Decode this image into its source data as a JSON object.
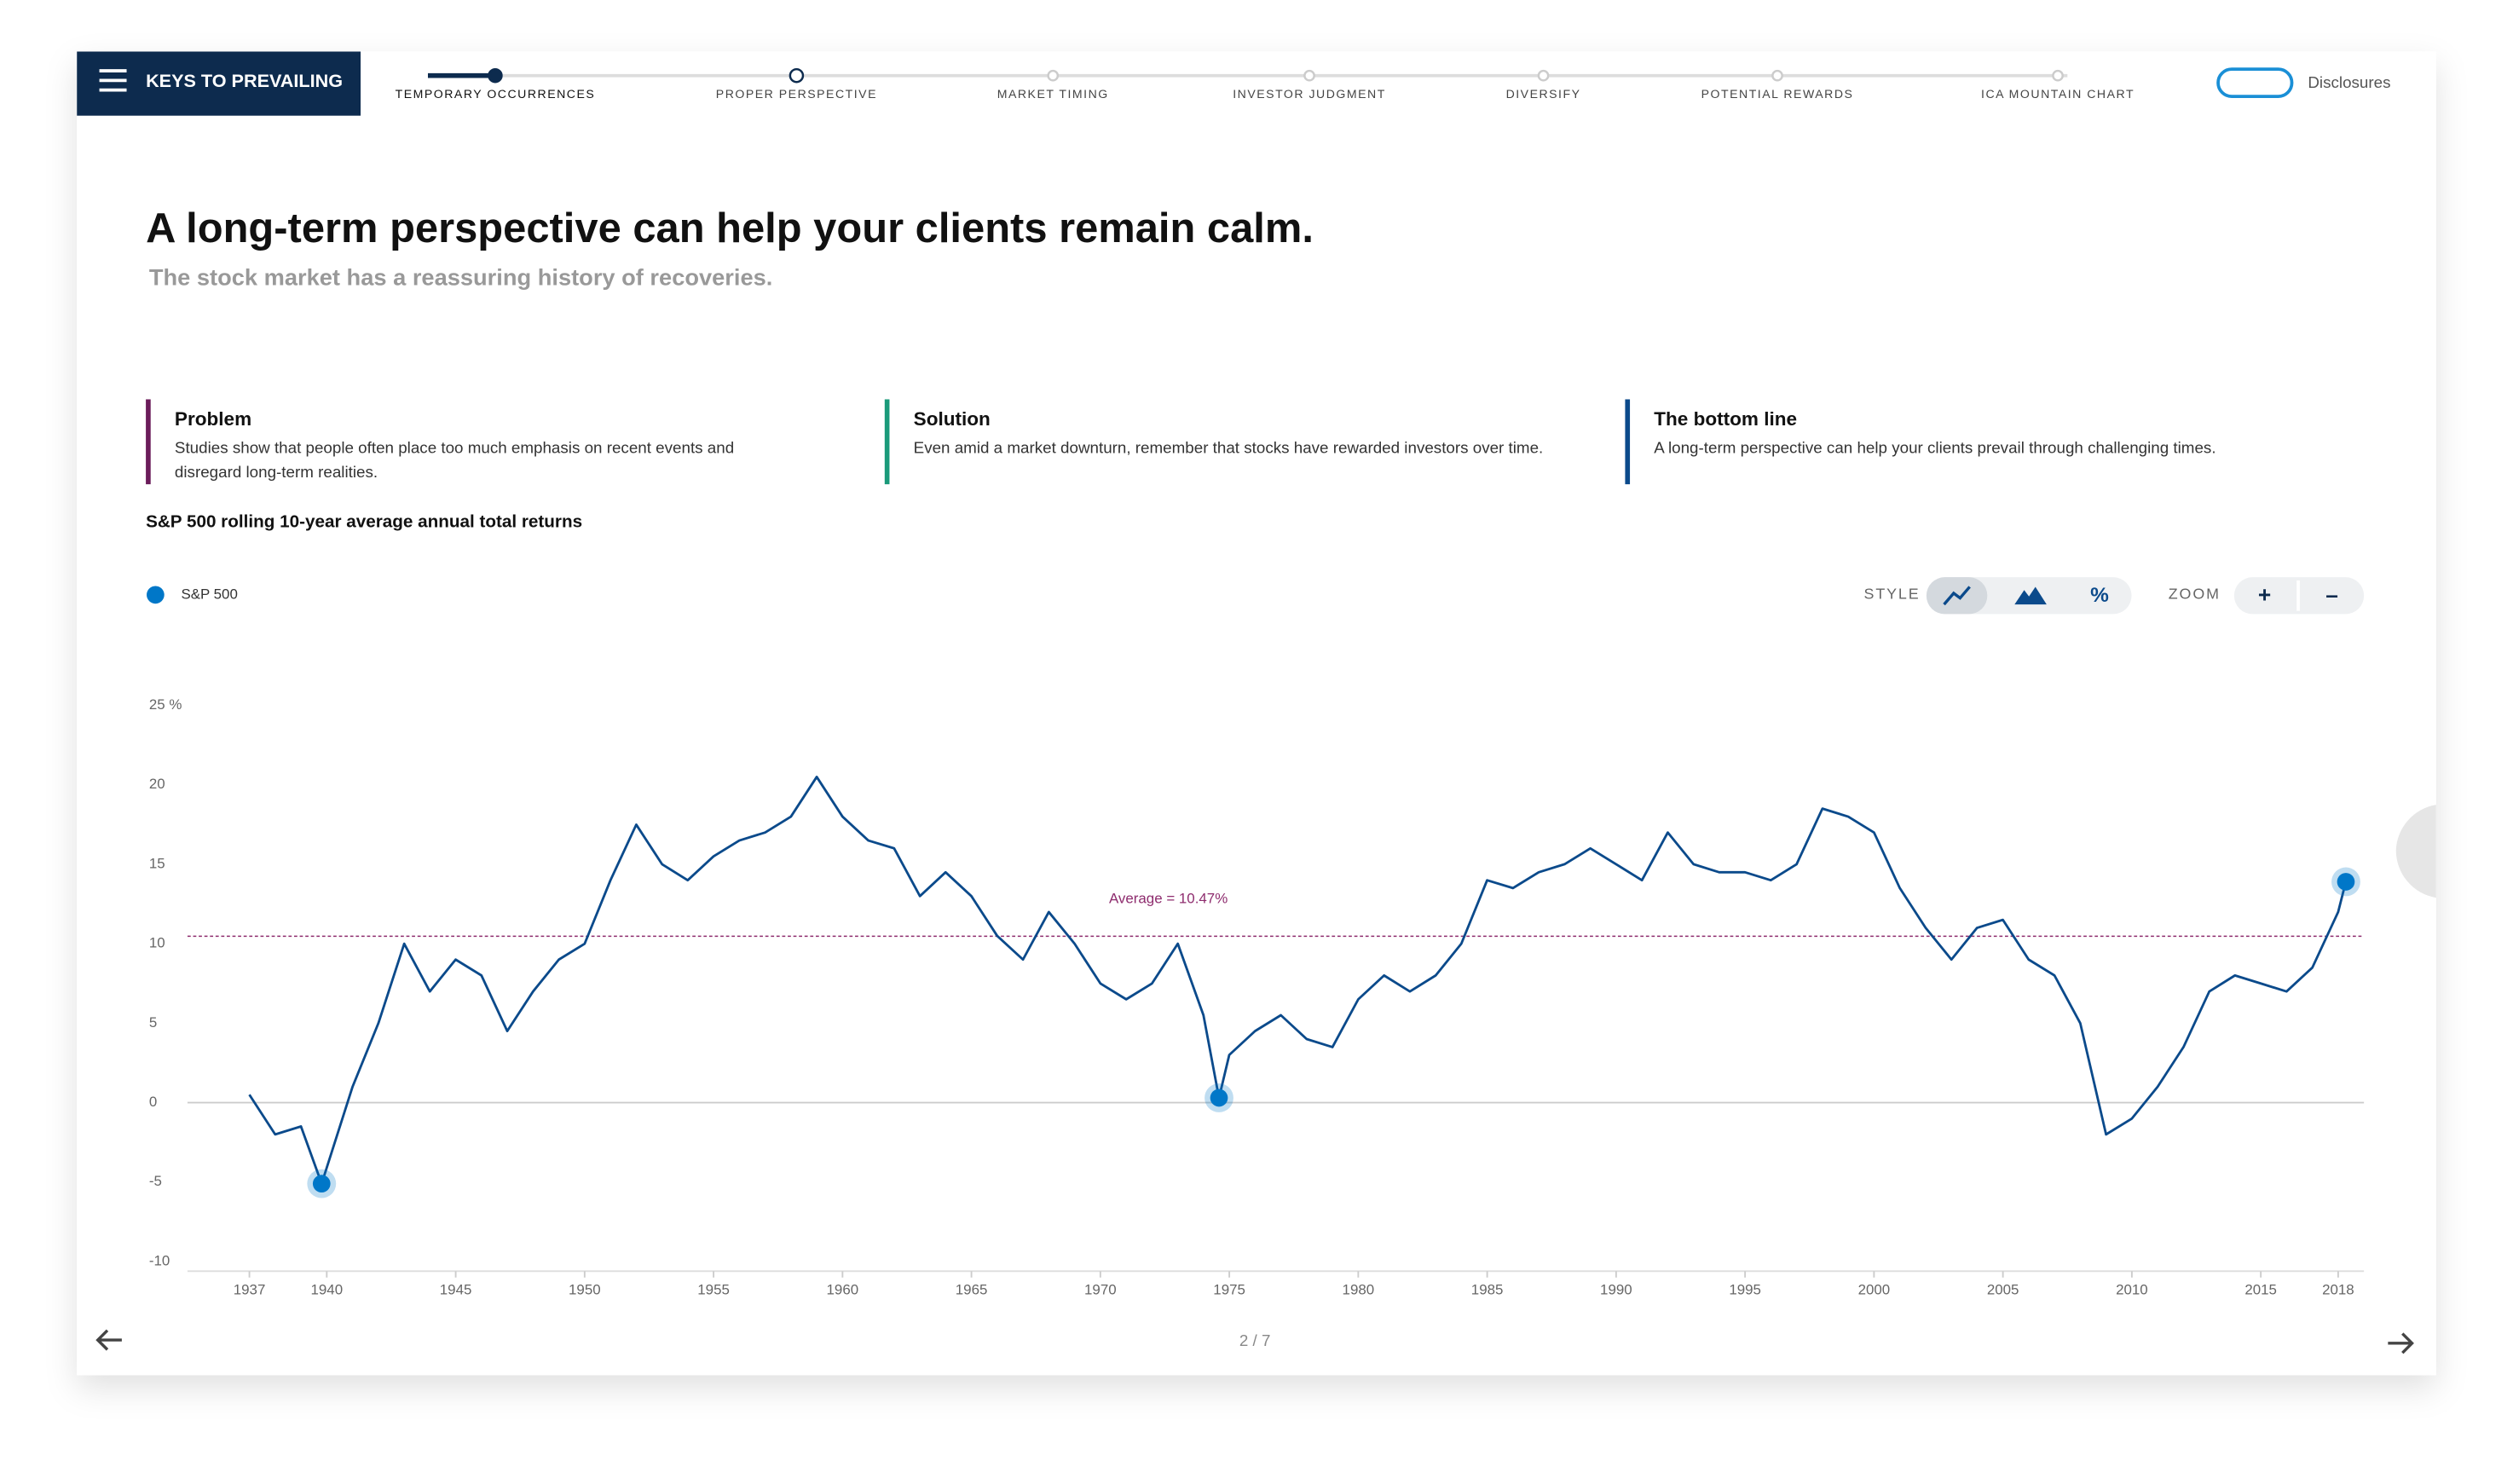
{
  "nav": {
    "menu_title": "KEYS TO PREVAILING",
    "steps": [
      "TEMPORARY OCCURRENCES",
      "PROPER PERSPECTIVE",
      "MARKET TIMING",
      "INVESTOR JUDGMENT",
      "DIVERSIFY",
      "POTENTIAL REWARDS",
      "ICA MOUNTAIN CHART"
    ],
    "disclosures": "Disclosures"
  },
  "header": {
    "title": "A long-term perspective can help your clients remain calm.",
    "subtitle": "The stock market has a reassuring history of recoveries."
  },
  "cards": [
    {
      "title": "Problem",
      "text": [
        "Studies show that people often place too much emphasis on recent events and",
        "disregard long-term realities."
      ]
    },
    {
      "title": "Solution",
      "text": [
        "Even amid a market downturn, remember that stocks have rewarded investors over time."
      ]
    },
    {
      "title": "The bottom line",
      "text": [
        "A long-term perspective can help your clients prevail through challenging times."
      ]
    }
  ],
  "controls": {
    "style_label": "STYLE",
    "percent": "%",
    "zoom_label": "ZOOM",
    "zoom_in": "+",
    "zoom_out": "–"
  },
  "pagination": "2 / 7",
  "chart_data": {
    "type": "line",
    "title": "S&P 500 rolling 10-year average annual total returns",
    "x": [
      1937,
      1938,
      1939,
      1939.8,
      1941,
      1942,
      1943,
      1944,
      1945,
      1946,
      1947,
      1948,
      1949,
      1950,
      1951,
      1952,
      1953,
      1954,
      1955,
      1956,
      1957,
      1958,
      1959,
      1960,
      1961,
      1962,
      1963,
      1964,
      1965,
      1966,
      1967,
      1968,
      1969,
      1970,
      1971,
      1972,
      1973,
      1974,
      1974.6,
      1975,
      1976,
      1977,
      1978,
      1979,
      1980,
      1981,
      1982,
      1983,
      1984,
      1985,
      1986,
      1987,
      1988,
      1989,
      1990,
      1991,
      1992,
      1993,
      1994,
      1995,
      1996,
      1997,
      1998,
      1999,
      2000,
      2001,
      2002,
      2003,
      2004,
      2005,
      2006,
      2007,
      2008,
      2009,
      2010,
      2011,
      2012,
      2013,
      2014,
      2015,
      2016,
      2017,
      2018,
      2018.3
    ],
    "series": [
      {
        "name": "S&P 500",
        "color": "#0b4a8b",
        "values": [
          0.5,
          -2,
          -1.5,
          -5.1,
          1,
          5,
          10,
          7,
          9,
          8,
          4.5,
          7,
          9,
          10,
          14,
          17.5,
          15,
          14,
          15.5,
          16.5,
          17,
          18,
          20.5,
          18,
          16.5,
          16,
          13,
          14.5,
          13,
          10.5,
          9,
          12,
          10,
          7.5,
          6.5,
          7.5,
          10,
          5.5,
          0.3,
          3,
          4.5,
          5.5,
          4,
          3.5,
          6.5,
          8,
          7,
          8,
          10,
          14,
          13.5,
          14.5,
          15,
          16,
          15,
          14,
          17,
          15,
          14.5,
          14.5,
          14,
          15,
          18.5,
          18,
          17,
          13.5,
          11,
          9,
          11,
          11.5,
          9,
          8,
          5,
          -2,
          -1,
          1,
          3.5,
          7,
          8,
          7.5,
          7,
          8.5,
          12,
          13.9
        ]
      }
    ],
    "highlights": {
      "x": [
        1939.8,
        1974.6,
        2018.3
      ],
      "values": [
        -5.1,
        0.3,
        13.9
      ],
      "color": "#0077c8"
    },
    "average": {
      "value": 10.47,
      "label": "Average = 10.47%",
      "color": "#8e2c6e"
    },
    "xlim": [
      1934.6,
      2019
    ],
    "xticks": [
      1937,
      1940,
      1945,
      1950,
      1955,
      1960,
      1965,
      1970,
      1975,
      1980,
      1985,
      1990,
      1995,
      2000,
      2005,
      2010,
      2015,
      2018
    ],
    "ylim": [
      -10,
      25
    ],
    "yticks": [
      -10,
      -5,
      0,
      5,
      10,
      15,
      20,
      {
        "value": 25,
        "label": "25 %"
      }
    ]
  }
}
